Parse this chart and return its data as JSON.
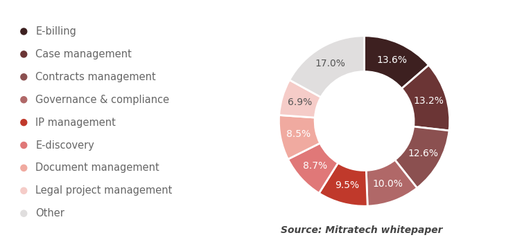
{
  "labels": [
    "E-billing",
    "Case management",
    "Contracts management",
    "Governance & compliance",
    "IP management",
    "E-discovery",
    "Document management",
    "Legal project management",
    "Other"
  ],
  "values": [
    13.6,
    13.2,
    12.6,
    10.0,
    9.5,
    8.7,
    8.5,
    6.9,
    17.0
  ],
  "colors": [
    "#3d2020",
    "#6b3535",
    "#8b5050",
    "#b06868",
    "#c0392b",
    "#e07878",
    "#f0aaa0",
    "#f5ccc8",
    "#e0dede"
  ],
  "pct_labels": [
    "13.6%",
    "13.2%",
    "12.6%",
    "10.0%",
    "9.5%",
    "8.7%",
    "8.5%",
    "6.9%",
    "17.0%"
  ],
  "pct_label_colors": [
    "white",
    "white",
    "white",
    "white",
    "white",
    "white",
    "white",
    "#555555",
    "#555555"
  ],
  "source_text": "Source: Mitratech whitepaper",
  "bg_color": "#ffffff",
  "text_color": "#666666",
  "label_fontsize": 10.5,
  "pct_fontsize": 10,
  "source_fontsize": 10
}
